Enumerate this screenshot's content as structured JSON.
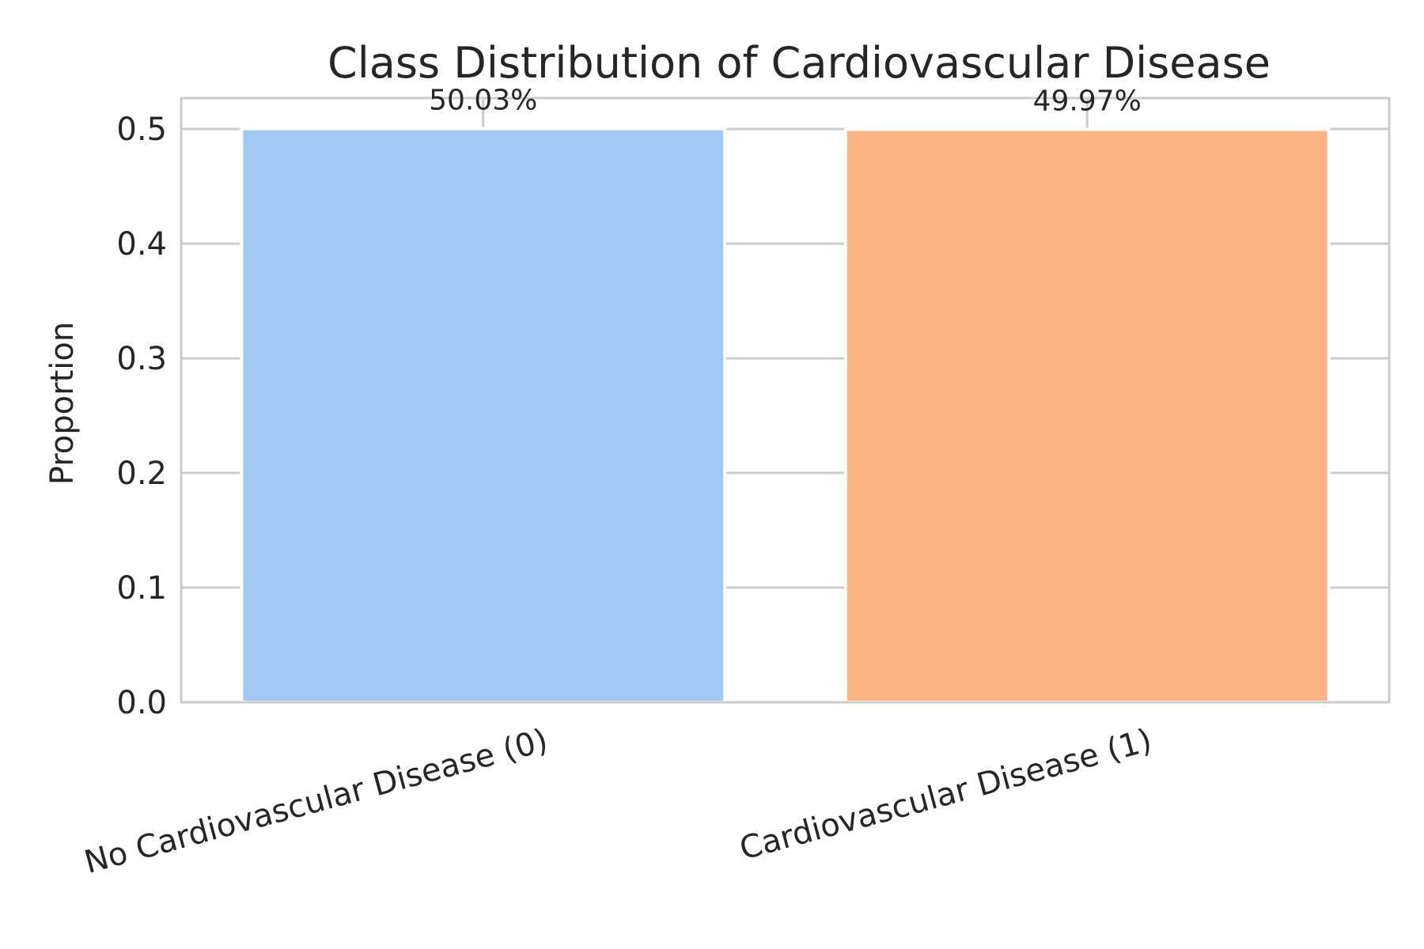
{
  "chart_data": {
    "type": "bar",
    "title": "Class Distribution of Cardiovascular Disease",
    "xlabel": "",
    "ylabel": "Proportion",
    "categories": [
      "No Cardiovascular Disease (0)",
      "Cardiovascular Disease (1)"
    ],
    "values": [
      0.5003,
      0.4997
    ],
    "data_labels": [
      "50.03%",
      "49.97%"
    ],
    "colors": [
      "#a1c9f4",
      "#ffb482"
    ],
    "ylim": [
      0,
      0.527
    ],
    "yticks": [
      0.0,
      0.1,
      0.2,
      0.3,
      0.4,
      0.5
    ],
    "ytick_labels": [
      "0.0",
      "0.1",
      "0.2",
      "0.3",
      "0.4",
      "0.5"
    ],
    "grid": true,
    "legend": "none"
  }
}
